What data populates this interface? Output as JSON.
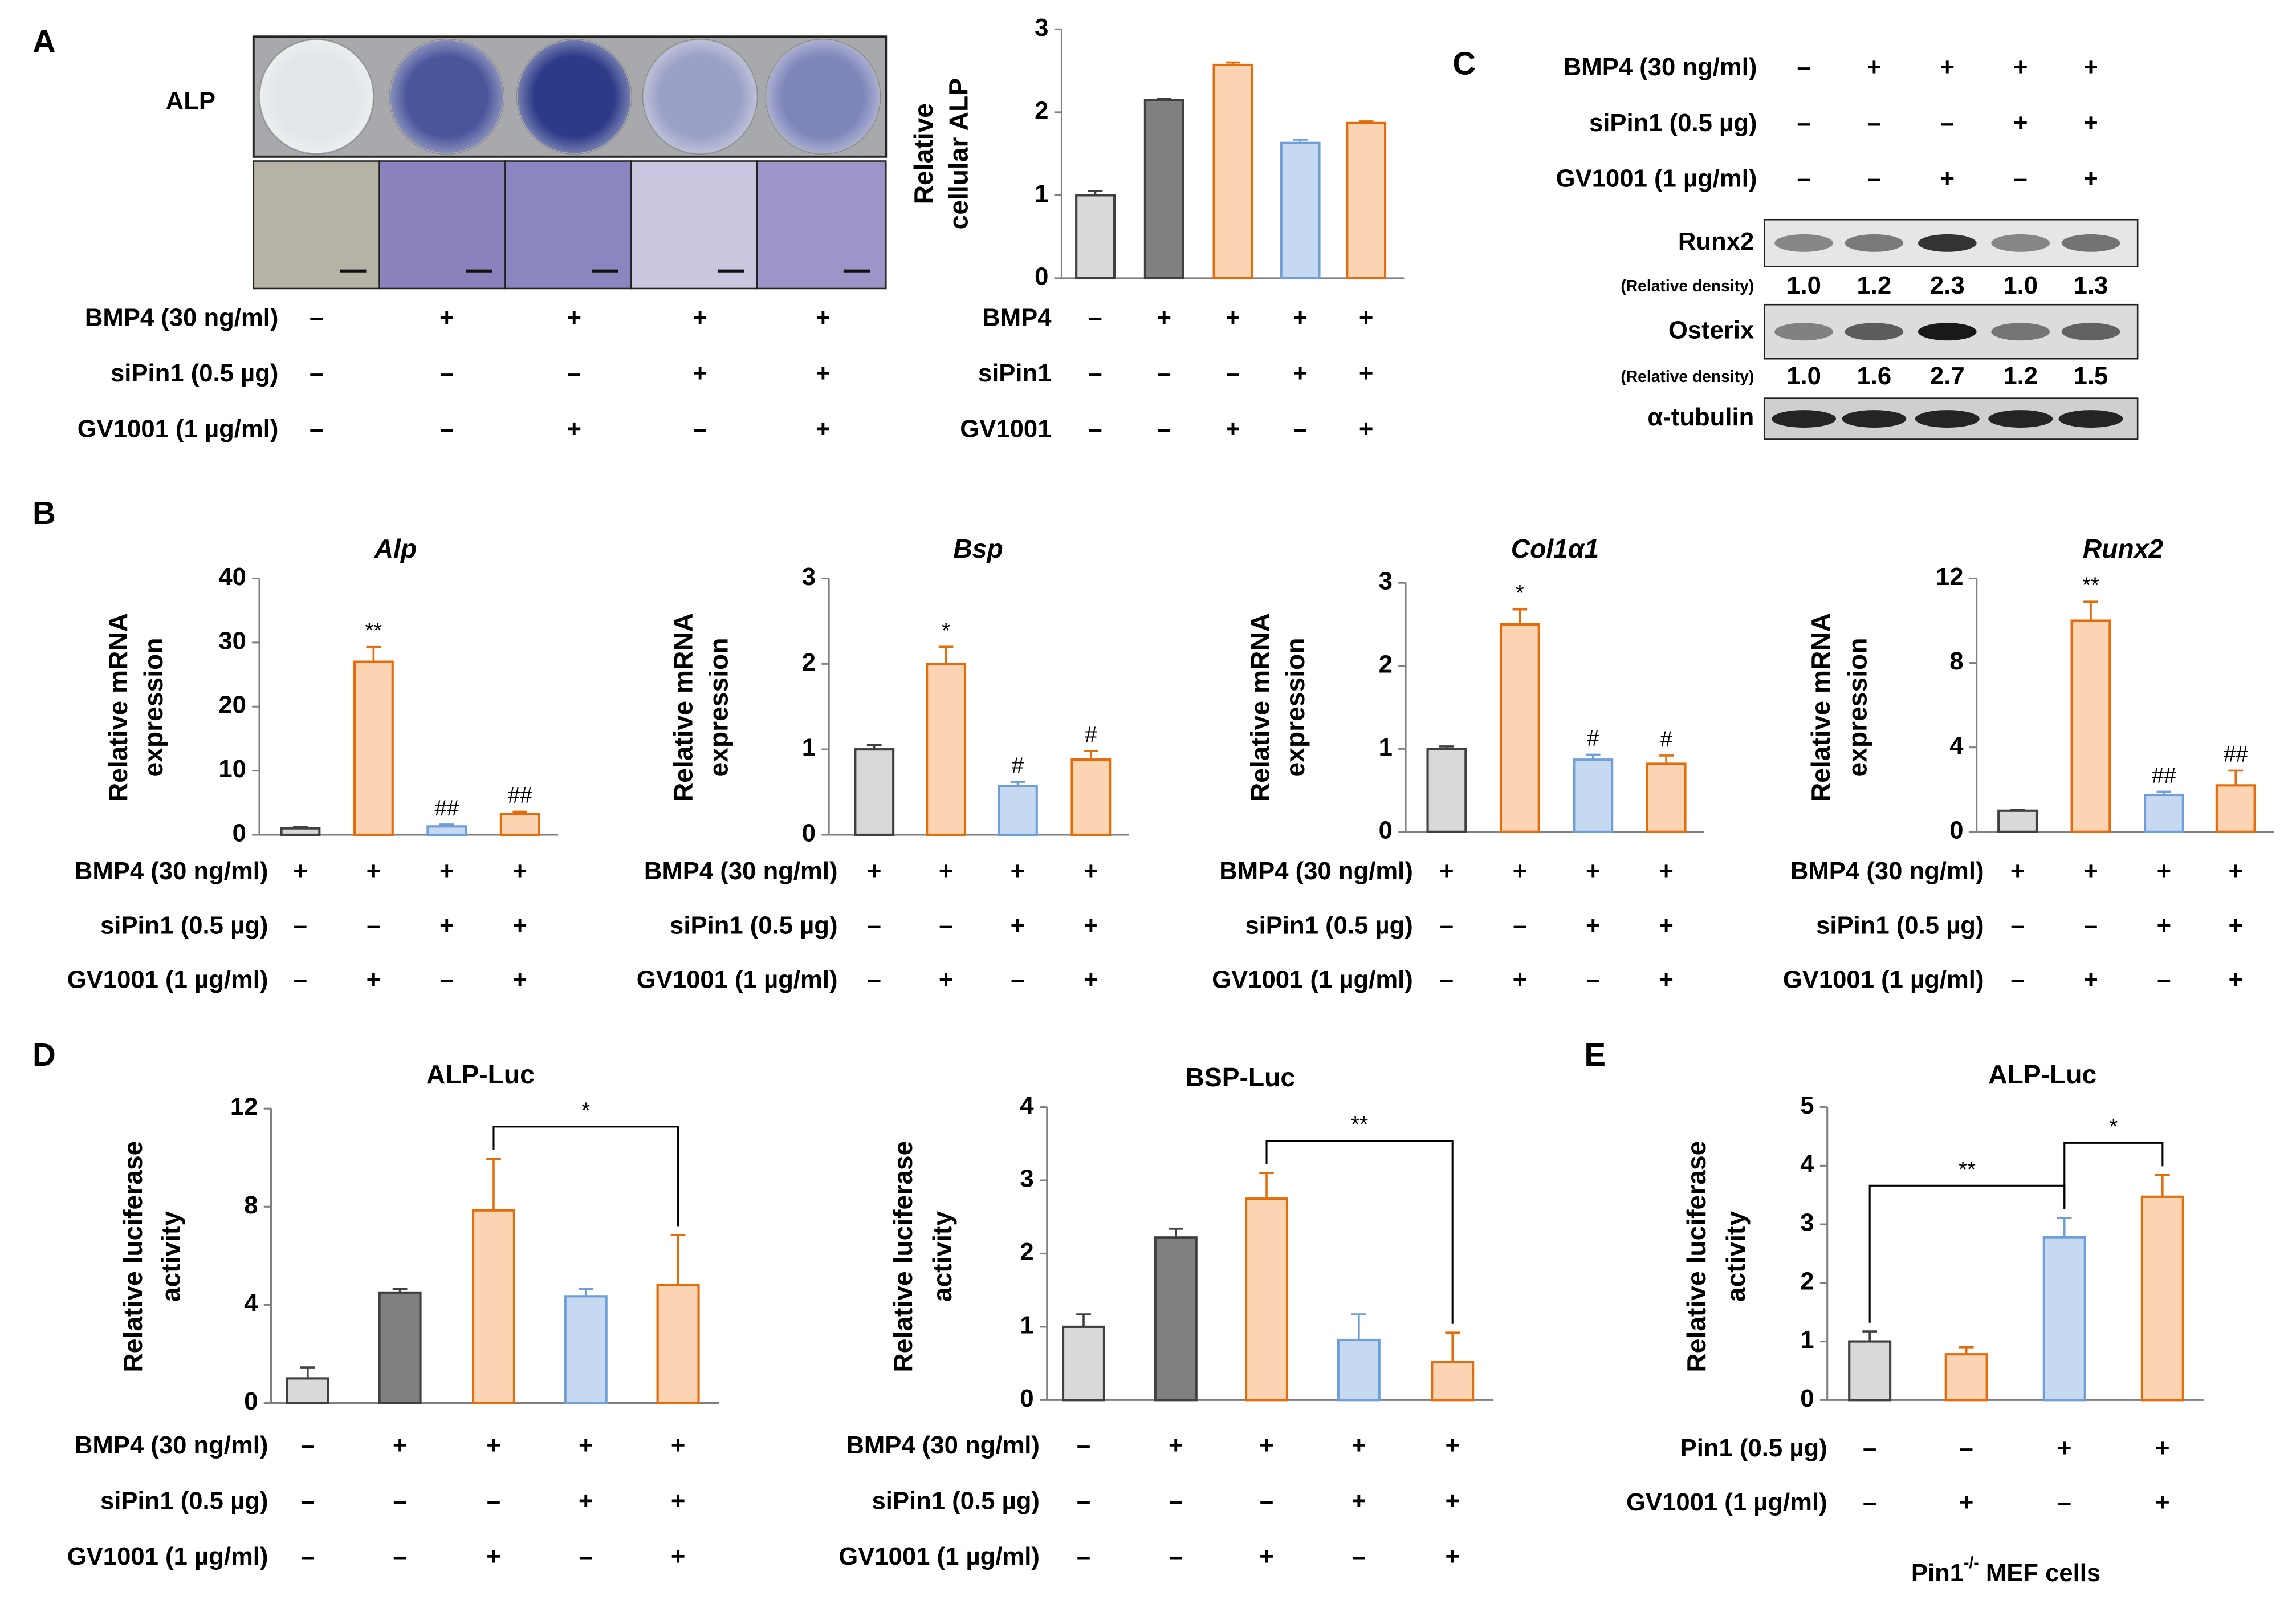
{
  "panel_labels": [
    "A",
    "B",
    "C",
    "D",
    "E"
  ],
  "plate": {
    "label": "ALP",
    "treatments": [
      {
        "label": "BMP4 (30 ng/ml)",
        "signs": [
          "–",
          "+",
          "+",
          "+",
          "+"
        ]
      },
      {
        "label": "siPin1 (0.5 µg)",
        "signs": [
          "–",
          "–",
          "–",
          "+",
          "+"
        ]
      },
      {
        "label": "GV1001 (1 µg/ml)",
        "signs": [
          "–",
          "–",
          "+",
          "–",
          "+"
        ]
      }
    ]
  },
  "blot": {
    "treatments": [
      {
        "label": "BMP4 (30 ng/ml)",
        "signs": [
          "–",
          "+",
          "+",
          "+",
          "+"
        ]
      },
      {
        "label": "siPin1 (0.5 µg)",
        "signs": [
          "–",
          "–",
          "–",
          "+",
          "+"
        ]
      },
      {
        "label": "GV1001 (1 µg/ml)",
        "signs": [
          "–",
          "–",
          "+",
          "–",
          "+"
        ]
      }
    ],
    "proteins": [
      {
        "name": "Runx2",
        "density_label": "(Relative density)",
        "densities": [
          "1.0",
          "1.2",
          "2.3",
          "1.0",
          "1.3"
        ]
      },
      {
        "name": "Osterix",
        "density_label": "(Relative density)",
        "densities": [
          "1.0",
          "1.6",
          "2.7",
          "1.2",
          "1.5"
        ]
      },
      {
        "name": "α-tubulin"
      }
    ]
  },
  "chart_data": [
    {
      "type": "bar",
      "ylabel": [
        "Relative",
        "cellular ALP"
      ],
      "values": [
        1.0,
        2.15,
        2.57,
        1.63,
        1.87
      ],
      "errors": [
        0.05,
        0.01,
        0.03,
        0.04,
        0.02
      ],
      "colors": [
        "#d9d9d9",
        "#808080",
        "#fbd4b4",
        "#c6d9f1",
        "#fbd4b4"
      ],
      "edgecolors": [
        "#404040",
        "#404040",
        "#e46c0a",
        "#6f9fd8",
        "#e46c0a"
      ],
      "ylim": [
        0,
        3
      ],
      "yticks": [
        0,
        1,
        2,
        3
      ],
      "treatments": [
        {
          "label": "BMP4",
          "signs": [
            "–",
            "+",
            "+",
            "+",
            "+"
          ]
        },
        {
          "label": "siPin1",
          "signs": [
            "–",
            "–",
            "–",
            "+",
            "+"
          ]
        },
        {
          "label": "GV1001",
          "signs": [
            "–",
            "–",
            "+",
            "–",
            "+"
          ]
        }
      ]
    },
    {
      "type": "bar",
      "title": "Alp",
      "title_style": "italic",
      "ylabel": [
        "Relative mRNA",
        "expression"
      ],
      "values": [
        1,
        27,
        1.3,
        3.2
      ],
      "errors": [
        0.2,
        2.3,
        0.3,
        0.4
      ],
      "marks": [
        null,
        "**",
        "##",
        "##"
      ],
      "colors": [
        "#d9d9d9",
        "#fbd4b4",
        "#c6d9f1",
        "#fbd4b4"
      ],
      "edgecolors": [
        "#404040",
        "#e46c0a",
        "#6f9fd8",
        "#e46c0a"
      ],
      "ylim": [
        0,
        40
      ],
      "yticks": [
        0,
        10,
        20,
        30,
        40
      ],
      "treatments": [
        {
          "label": "BMP4 (30 ng/ml)",
          "signs": [
            "+",
            "+",
            "+",
            "+"
          ]
        },
        {
          "label": "siPin1 (0.5 µg)",
          "signs": [
            "–",
            "–",
            "+",
            "+"
          ]
        },
        {
          "label": "GV1001 (1 µg/ml)",
          "signs": [
            "–",
            "+",
            "–",
            "+"
          ]
        }
      ]
    },
    {
      "type": "bar",
      "title": "Bsp",
      "title_style": "italic",
      "ylabel": [
        "Relative mRNA",
        "expression"
      ],
      "values": [
        1.0,
        2.0,
        0.57,
        0.88
      ],
      "errors": [
        0.05,
        0.2,
        0.05,
        0.1
      ],
      "marks": [
        null,
        "*",
        "#",
        "#"
      ],
      "colors": [
        "#d9d9d9",
        "#fbd4b4",
        "#c6d9f1",
        "#fbd4b4"
      ],
      "edgecolors": [
        "#404040",
        "#e46c0a",
        "#6f9fd8",
        "#e46c0a"
      ],
      "ylim": [
        0,
        3
      ],
      "yticks": [
        0,
        1,
        2,
        3
      ],
      "treatments": [
        {
          "label": "BMP4 (30 ng/ml)",
          "signs": [
            "+",
            "+",
            "+",
            "+"
          ]
        },
        {
          "label": "siPin1 (0.5 µg)",
          "signs": [
            "–",
            "–",
            "+",
            "+"
          ]
        },
        {
          "label": "GV1001 (1 µg/ml)",
          "signs": [
            "–",
            "+",
            "–",
            "+"
          ]
        }
      ]
    },
    {
      "type": "bar",
      "title": "Col1α1",
      "title_style": "italic",
      "ylabel": [
        "Relative mRNA",
        "expression"
      ],
      "values": [
        1.0,
        2.5,
        0.87,
        0.82
      ],
      "errors": [
        0.03,
        0.18,
        0.06,
        0.1
      ],
      "marks": [
        null,
        "*",
        "#",
        "#"
      ],
      "colors": [
        "#d9d9d9",
        "#fbd4b4",
        "#c6d9f1",
        "#fbd4b4"
      ],
      "edgecolors": [
        "#404040",
        "#e46c0a",
        "#6f9fd8",
        "#e46c0a"
      ],
      "ylim": [
        0,
        3
      ],
      "yticks": [
        0,
        1,
        2,
        3
      ],
      "treatments": [
        {
          "label": "BMP4 (30 ng/ml)",
          "signs": [
            "+",
            "+",
            "+",
            "+"
          ]
        },
        {
          "label": "siPin1 (0.5 µg)",
          "signs": [
            "–",
            "–",
            "+",
            "+"
          ]
        },
        {
          "label": "GV1001 (1 µg/ml)",
          "signs": [
            "–",
            "+",
            "–",
            "+"
          ]
        }
      ]
    },
    {
      "type": "bar",
      "title": "Runx2",
      "title_style": "italic",
      "ylabel": [
        "Relative mRNA",
        "expression"
      ],
      "values": [
        1.0,
        10.0,
        1.75,
        2.2
      ],
      "errors": [
        0.05,
        0.9,
        0.15,
        0.7
      ],
      "marks": [
        null,
        "**",
        "##",
        "##"
      ],
      "colors": [
        "#d9d9d9",
        "#fbd4b4",
        "#c6d9f1",
        "#fbd4b4"
      ],
      "edgecolors": [
        "#404040",
        "#e46c0a",
        "#6f9fd8",
        "#e46c0a"
      ],
      "ylim": [
        0,
        12
      ],
      "yticks": [
        0,
        4,
        8,
        12
      ],
      "treatments": [
        {
          "label": "BMP4 (30 ng/ml)",
          "signs": [
            "+",
            "+",
            "+",
            "+"
          ]
        },
        {
          "label": "siPin1 (0.5 µg)",
          "signs": [
            "–",
            "–",
            "+",
            "+"
          ]
        },
        {
          "label": "GV1001 (1 µg/ml)",
          "signs": [
            "–",
            "+",
            "–",
            "+"
          ]
        }
      ]
    },
    {
      "type": "bar",
      "title": "ALP-Luc",
      "ylabel": [
        "Relative luciferase",
        "activity"
      ],
      "values": [
        1.0,
        4.5,
        7.85,
        4.35,
        4.8
      ],
      "errors": [
        0.45,
        0.15,
        2.1,
        0.3,
        2.05
      ],
      "colors": [
        "#d9d9d9",
        "#808080",
        "#fbd4b4",
        "#c6d9f1",
        "#fbd4b4"
      ],
      "edgecolors": [
        "#404040",
        "#404040",
        "#e46c0a",
        "#6f9fd8",
        "#e46c0a"
      ],
      "ylim": [
        0,
        12
      ],
      "yticks": [
        0,
        4,
        8,
        12
      ],
      "brackets": [
        {
          "from": 2,
          "to": 4,
          "text": "*"
        }
      ],
      "treatments": [
        {
          "label": "BMP4 (30 ng/ml)",
          "signs": [
            "–",
            "+",
            "+",
            "+",
            "+"
          ]
        },
        {
          "label": "siPin1 (0.5 µg)",
          "signs": [
            "–",
            "–",
            "–",
            "+",
            "+"
          ]
        },
        {
          "label": "GV1001 (1 µg/ml)",
          "signs": [
            "–",
            "–",
            "+",
            "–",
            "+"
          ]
        }
      ]
    },
    {
      "type": "bar",
      "title": "BSP-Luc",
      "ylabel": [
        "Relative luciferase",
        "activity"
      ],
      "values": [
        1.0,
        2.22,
        2.75,
        0.82,
        0.52
      ],
      "errors": [
        0.17,
        0.12,
        0.35,
        0.35,
        0.4
      ],
      "colors": [
        "#d9d9d9",
        "#808080",
        "#fbd4b4",
        "#c6d9f1",
        "#fbd4b4"
      ],
      "edgecolors": [
        "#404040",
        "#404040",
        "#e46c0a",
        "#6f9fd8",
        "#e46c0a"
      ],
      "ylim": [
        0,
        4
      ],
      "yticks": [
        0,
        1,
        2,
        3,
        4
      ],
      "brackets": [
        {
          "from": 2,
          "to": 4,
          "text": "**"
        }
      ],
      "treatments": [
        {
          "label": "BMP4 (30 ng/ml)",
          "signs": [
            "–",
            "+",
            "+",
            "+",
            "+"
          ]
        },
        {
          "label": "siPin1 (0.5 µg)",
          "signs": [
            "–",
            "–",
            "–",
            "+",
            "+"
          ]
        },
        {
          "label": "GV1001 (1 µg/ml)",
          "signs": [
            "–",
            "–",
            "+",
            "–",
            "+"
          ]
        }
      ]
    },
    {
      "type": "bar",
      "title": "ALP-Luc",
      "ylabel": [
        "Relative luciferase",
        "activity"
      ],
      "values": [
        1.0,
        0.78,
        2.78,
        3.47
      ],
      "errors": [
        0.17,
        0.12,
        0.33,
        0.37
      ],
      "colors": [
        "#d9d9d9",
        "#fbd4b4",
        "#c6d9f1",
        "#fbd4b4"
      ],
      "edgecolors": [
        "#404040",
        "#e46c0a",
        "#6f9fd8",
        "#e46c0a"
      ],
      "ylim": [
        0,
        5
      ],
      "yticks": [
        0,
        1,
        2,
        3,
        4,
        5
      ],
      "brackets": [
        {
          "from": 0,
          "to": 2,
          "text": "**"
        },
        {
          "from": 2,
          "to": 3,
          "text": "*"
        }
      ],
      "treatments": [
        {
          "label": "Pin1 (0.5 µg)",
          "signs": [
            "–",
            "–",
            "+",
            "+"
          ]
        },
        {
          "label": "GV1001 (1 µg/ml)",
          "signs": [
            "–",
            "+",
            "–",
            "+"
          ]
        }
      ],
      "caption": {
        "text": "Pin1",
        "sup": "-/-",
        "rest": " MEF cells"
      }
    }
  ]
}
